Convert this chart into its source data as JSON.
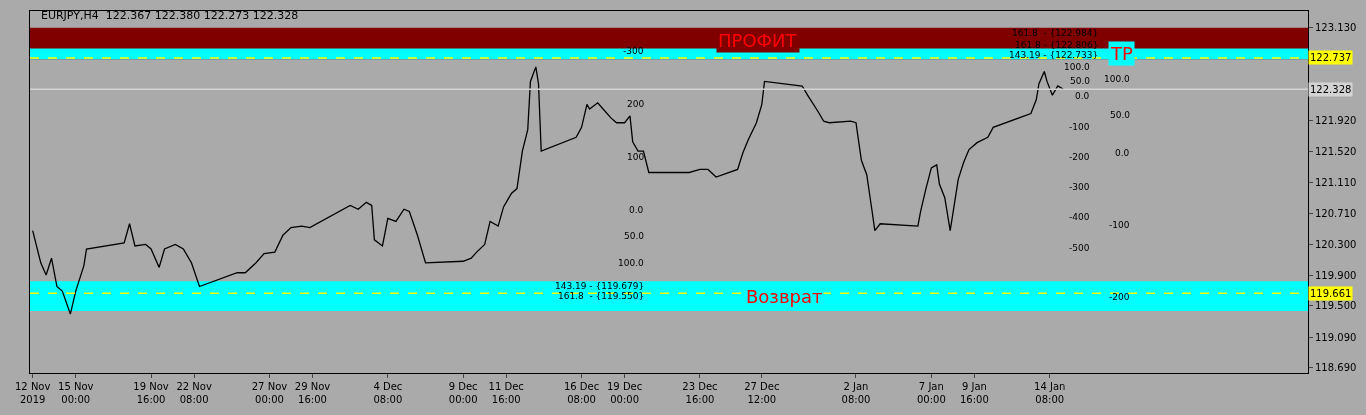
{
  "chart_data": {
    "type": "line",
    "title": "EURJPY,H4  122.367 122.380 122.273 122.328",
    "x": [
      "2019-11-12T08:00",
      "2019-11-12T20:00",
      "2019-11-13T04:00",
      "2019-11-13T12:00",
      "2019-11-13T20:00",
      "2019-11-14T04:00",
      "2019-11-14T16:00",
      "2019-11-15T00:00",
      "2019-11-15T12:00",
      "2019-11-15T16:00",
      "2019-11-18T00:00",
      "2019-11-18T08:00",
      "2019-11-18T16:00",
      "2019-11-19T08:00",
      "2019-11-19T16:00",
      "2019-11-20T04:00",
      "2019-11-20T12:00",
      "2019-11-21T04:00",
      "2019-11-21T16:00",
      "2019-11-22T04:00",
      "2019-11-22T16:00",
      "2019-11-25T00:00",
      "2019-11-25T12:00",
      "2019-11-26T04:00",
      "2019-11-26T16:00",
      "2019-11-27T08:00",
      "2019-11-27T20:00",
      "2019-11-28T08:00",
      "2019-11-29T00:00",
      "2019-11-29T12:00",
      "2019-12-02T00:00",
      "2019-12-02T12:00",
      "2019-12-03T00:00",
      "2019-12-03T08:00",
      "2019-12-03T12:00",
      "2019-12-04T00:00",
      "2019-12-04T08:00",
      "2019-12-04T20:00",
      "2019-12-05T08:00",
      "2019-12-05T16:00",
      "2019-12-06T04:00",
      "2019-12-06T16:00",
      "2019-12-09T00:00",
      "2019-12-09T12:00",
      "2019-12-09T20:00",
      "2019-12-10T08:00",
      "2019-12-10T16:00",
      "2019-12-11T04:00",
      "2019-12-11T12:00",
      "2019-12-12T00:00",
      "2019-12-12T08:00",
      "2019-12-12T16:00",
      "2019-12-13T00:00",
      "2019-12-13T04:00",
      "2019-12-13T12:00",
      "2019-12-13T16:00",
      "2019-12-13T20:00",
      "2019-12-16T00:00",
      "2019-12-16T08:00",
      "2019-12-16T16:00",
      "2019-12-16T20:00",
      "2019-12-17T08:00",
      "2019-12-17T16:00",
      "2019-12-18T04:00",
      "2019-12-18T12:00",
      "2019-12-19T00:00",
      "2019-12-19T08:00",
      "2019-12-19T12:00",
      "2019-12-19T20:00",
      "2019-12-20T04:00",
      "2019-12-20T12:00",
      "2019-12-23T00:00",
      "2019-12-23T16:00",
      "2019-12-24T04:00",
      "2019-12-24T16:00",
      "2019-12-26T00:00",
      "2019-12-26T08:00",
      "2019-12-26T16:00",
      "2019-12-27T04:00",
      "2019-12-27T12:00",
      "2019-12-27T16:00",
      "2019-12-30T00:00",
      "2019-12-30T08:00",
      "2019-12-31T00:00",
      "2019-12-31T08:00",
      "2019-12-31T16:00",
      "2020-01-02T00:00",
      "2020-01-02T08:00",
      "2020-01-02T16:00",
      "2020-01-03T00:00",
      "2020-01-03T08:00",
      "2020-01-03T12:00",
      "2020-01-03T20:00",
      "2020-01-06T04:00",
      "2020-01-06T08:00",
      "2020-01-06T16:00",
      "2020-01-07T00:00",
      "2020-01-07T08:00",
      "2020-01-07T12:00",
      "2020-01-07T20:00",
      "2020-01-08T04:00",
      "2020-01-08T08:00",
      "2020-01-08T16:00",
      "2020-01-09T00:00",
      "2020-01-09T08:00",
      "2020-01-09T20:00",
      "2020-01-10T12:00",
      "2020-01-10T20:00",
      "2020-01-13T04:00",
      "2020-01-13T12:00",
      "2020-01-13T16:00",
      "2020-01-14T00:00",
      "2020-01-14T04:00",
      "2020-01-14T12:00",
      "2020-01-14T20:00",
      "2020-01-15T04:00"
    ],
    "series": [
      {
        "color": "#000000",
        "values": [
          120.48,
          120.06,
          119.9,
          120.12,
          119.75,
          119.69,
          119.39,
          119.69,
          120.02,
          120.24,
          120.32,
          120.57,
          120.28,
          120.3,
          120.24,
          120.0,
          120.24,
          120.3,
          120.24,
          120.06,
          119.75,
          119.93,
          119.93,
          120.06,
          120.18,
          120.2,
          120.42,
          120.52,
          120.54,
          120.52,
          120.81,
          120.76,
          120.85,
          120.81,
          120.36,
          120.28,
          120.64,
          120.6,
          120.76,
          120.73,
          120.42,
          120.06,
          120.08,
          120.12,
          120.2,
          120.3,
          120.6,
          120.54,
          120.79,
          120.97,
          121.03,
          121.52,
          121.8,
          122.43,
          122.62,
          122.4,
          121.52,
          121.7,
          121.83,
          122.13,
          122.07,
          122.15,
          122.07,
          121.95,
          121.89,
          121.89,
          121.98,
          121.64,
          121.52,
          121.52,
          121.24,
          121.24,
          121.28,
          121.28,
          121.18,
          121.28,
          121.5,
          121.67,
          121.89,
          122.13,
          122.43,
          122.37,
          122.25,
          122.03,
          121.91,
          121.89,
          121.91,
          121.89,
          121.4,
          121.21,
          120.73,
          120.48,
          120.57,
          120.54,
          120.73,
          121.03,
          121.3,
          121.34,
          121.09,
          120.91,
          120.48,
          120.7,
          121.15,
          121.37,
          121.54,
          121.63,
          121.7,
          121.83,
          122.01,
          122.19,
          122.4,
          122.56,
          122.43,
          122.25,
          122.37,
          122.33
        ]
      }
    ],
    "xlim": [
      "2019-11-12T04:00",
      "2020-01-30T08:00"
    ],
    "xticks": [
      {
        "value": "2019-11-12T08:00",
        "label": "12 Nov 2019"
      },
      {
        "value": "2019-11-15T00:00",
        "label": "15 Nov 00:00"
      },
      {
        "value": "2019-11-19T16:00",
        "label": "19 Nov 16:00"
      },
      {
        "value": "2019-11-22T08:00",
        "label": "22 Nov 08:00"
      },
      {
        "value": "2019-11-27T00:00",
        "label": "27 Nov 00:00"
      },
      {
        "value": "2019-11-29T16:00",
        "label": "29 Nov 16:00"
      },
      {
        "value": "2019-12-04T08:00",
        "label": "4 Dec 08:00"
      },
      {
        "value": "2019-12-09T00:00",
        "label": "9 Dec 00:00"
      },
      {
        "value": "2019-12-11T16:00",
        "label": "11 Dec 16:00"
      },
      {
        "value": "2019-12-16T08:00",
        "label": "16 Dec 08:00"
      },
      {
        "value": "2019-12-19T00:00",
        "label": "19 Dec 00:00"
      },
      {
        "value": "2019-12-23T16:00",
        "label": "23 Dec 16:00"
      },
      {
        "value": "2019-12-27T12:00",
        "label": "27 Dec 12:00"
      },
      {
        "value": "2020-01-02T08:00",
        "label": "2 Jan 08:00"
      },
      {
        "value": "2020-01-07T00:00",
        "label": "7 Jan 00:00"
      },
      {
        "value": "2020-01-09T16:00",
        "label": "9 Jan 16:00"
      },
      {
        "value": "2020-01-14T08:00",
        "label": "14 Jan 08:00"
      }
    ],
    "ylim": [
      118.62,
      123.35
    ],
    "yticks": [
      {
        "value": 123.13,
        "label": "123.130"
      },
      {
        "value": 121.92,
        "label": "121.920"
      },
      {
        "value": 121.52,
        "label": "121.520"
      },
      {
        "value": 121.11,
        "label": "121.110"
      },
      {
        "value": 120.71,
        "label": "120.710"
      },
      {
        "value": 120.3,
        "label": "120.300"
      },
      {
        "value": 119.9,
        "label": "119.900"
      },
      {
        "value": 119.5,
        "label": "119.500"
      },
      {
        "value": 119.09,
        "label": "119.090"
      },
      {
        "value": 118.69,
        "label": "118.690"
      }
    ],
    "grid": false,
    "marker": "none",
    "line_style": "solid",
    "bands": [
      {
        "axis": "y",
        "from": 122.72,
        "to": 123.13,
        "label": "ПРОФИТ",
        "color": "#800000"
      },
      {
        "axis": "y",
        "from": 119.43,
        "to": 119.82,
        "label": "Возврат",
        "color": "#00ffff"
      },
      {
        "axis": "y",
        "from": 122.72,
        "to": 122.86,
        "label": "TP",
        "color": "#00ffff"
      }
    ],
    "ref_lines": [
      {
        "axis": "y",
        "value": 122.737,
        "label": "122.737",
        "color": "#ffff00",
        "line_style": "dashed"
      },
      {
        "axis": "y",
        "value": 119.661,
        "label": "119.661",
        "color": "#ffff00",
        "line_style": "dashed"
      },
      {
        "axis": "y",
        "value": 122.328,
        "label": "122.328",
        "color": "#d3d3d3",
        "line_style": "solid"
      }
    ],
    "annotations": [
      "-300",
      "200",
      "100",
      "0.0",
      "50.0",
      "100.0",
      "143.19 - {119.679}",
      "161.8  - {119.550}",
      "161.8  - {122.984}",
      "161.8 - {122.806}",
      "143.19 - {122.733}",
      "100.0",
      "50.0",
      "0.0",
      "-100",
      "-200",
      "-300",
      "-400",
      "-500",
      "100.0",
      "50.0",
      "0.0",
      "-100",
      "-200"
    ]
  }
}
